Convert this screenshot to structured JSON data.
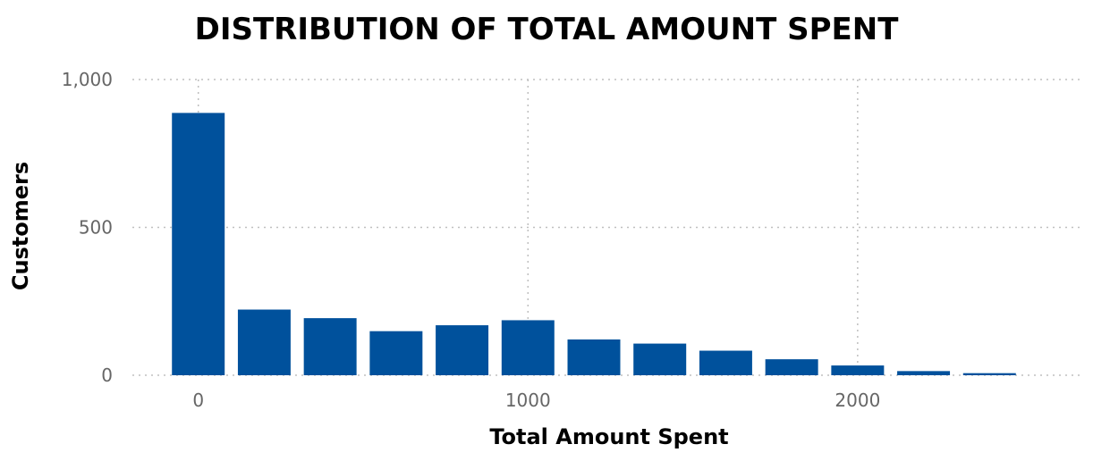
{
  "chart_data": {
    "type": "bar",
    "title": "DISTRIBUTION OF TOTAL AMOUNT SPENT",
    "xlabel": "Total Amount Spent",
    "ylabel": "Customers",
    "bin_width": 200,
    "x": [
      0,
      200,
      400,
      600,
      800,
      1000,
      1200,
      1400,
      1600,
      1800,
      2000,
      2200,
      2400
    ],
    "values": [
      887,
      222,
      193,
      149,
      169,
      186,
      121,
      107,
      83,
      54,
      33,
      14,
      7
    ],
    "xlim": [
      -200,
      2600
    ],
    "ylim": [
      0,
      1000
    ],
    "x_ticks": [
      0,
      1000,
      2000
    ],
    "y_ticks": [
      0,
      500,
      1000
    ],
    "x_tick_labels": [
      "0",
      "1000",
      "2000"
    ],
    "y_tick_labels": [
      "0",
      "500",
      "1,000"
    ],
    "bar_color": "#00519C",
    "grid": true
  }
}
